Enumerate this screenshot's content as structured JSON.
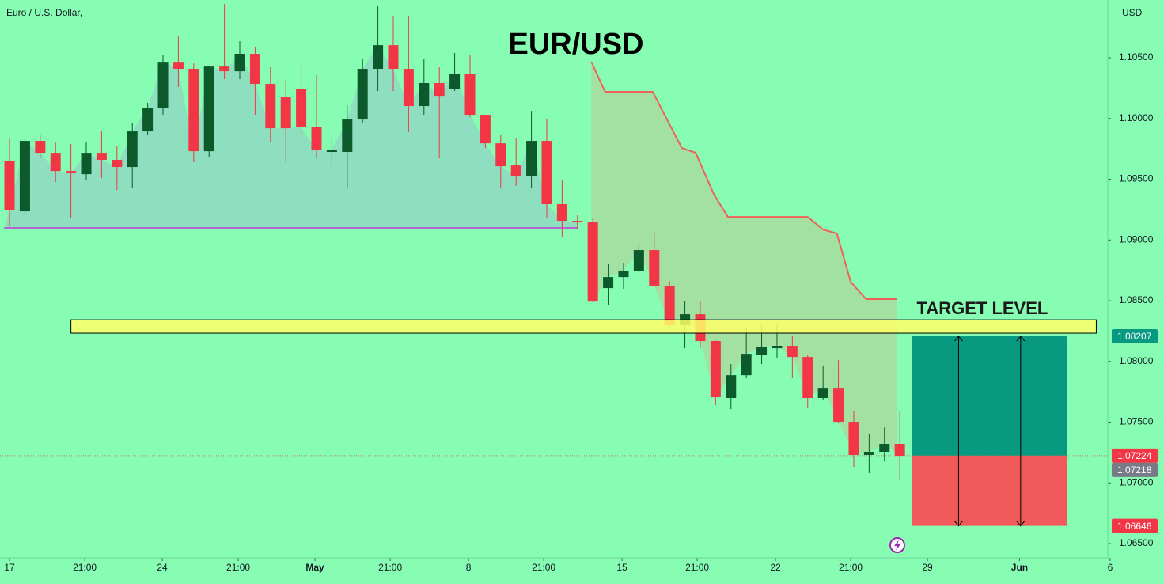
{
  "chart_data": {
    "type": "candlestick",
    "instrument": "Euro / U.S. Dollar,",
    "currency": "USD",
    "title": "EUR/USD",
    "xlim": [
      -0.62,
      71.55
    ],
    "ylim": [
      1.06383,
      1.10976
    ],
    "xticks": [
      {
        "value": 0,
        "label": "17"
      },
      {
        "value": 4.9,
        "label": "21:00"
      },
      {
        "value": 9.95,
        "label": "24"
      },
      {
        "value": 14.9,
        "label": "21:00"
      },
      {
        "value": 19.9,
        "label": "May"
      },
      {
        "value": 24.8,
        "label": "21:00"
      },
      {
        "value": 29.9,
        "label": "8"
      },
      {
        "value": 34.8,
        "label": "21:00"
      },
      {
        "value": 39.9,
        "label": "15"
      },
      {
        "value": 44.8,
        "label": "21:00"
      },
      {
        "value": 49.9,
        "label": "22"
      },
      {
        "value": 54.8,
        "label": "21:00"
      },
      {
        "value": 59.8,
        "label": "29"
      },
      {
        "value": 65.8,
        "label": "Jun"
      },
      {
        "value": 71.7,
        "label": "6"
      }
    ],
    "yticks": [
      {
        "value": 1.105,
        "label": "1.10500"
      },
      {
        "value": 1.1,
        "label": "1.10000"
      },
      {
        "value": 1.095,
        "label": "1.09500"
      },
      {
        "value": 1.09,
        "label": "1.09000"
      },
      {
        "value": 1.085,
        "label": "1.08500"
      },
      {
        "value": 1.08,
        "label": "1.08000"
      },
      {
        "value": 1.075,
        "label": "1.07500"
      },
      {
        "value": 1.07,
        "label": "1.07000"
      },
      {
        "value": 1.065,
        "label": "1.06500"
      }
    ],
    "up_color": "#0c5a2c",
    "down_color": "#f23645",
    "x": [
      0,
      1,
      2,
      3,
      4,
      5,
      6,
      7,
      8,
      9,
      10,
      11,
      12,
      13,
      14,
      15,
      16,
      17,
      18,
      19,
      20,
      21,
      22,
      23,
      24,
      25,
      26,
      27,
      28,
      29,
      30,
      31,
      32,
      33,
      34,
      35,
      36,
      37,
      38,
      39,
      40,
      41,
      42,
      43,
      44,
      45,
      46,
      47,
      48,
      49,
      50,
      51,
      52,
      53,
      54,
      55,
      56,
      57,
      58
    ],
    "open": [
      1.09653,
      1.09236,
      1.09816,
      1.09718,
      1.09568,
      1.09542,
      1.09718,
      1.0966,
      1.09601,
      1.09894,
      1.1009,
      1.10467,
      1.10409,
      1.09731,
      1.10428,
      1.10389,
      1.10533,
      1.10285,
      1.10181,
      1.10246,
      1.09933,
      1.09725,
      1.09725,
      1.09992,
      1.10409,
      1.10604,
      1.10409,
      1.10103,
      1.10292,
      1.10246,
      1.1037,
      1.10031,
      1.09796,
      1.09614,
      1.09523,
      1.09816,
      1.09295,
      1.09158,
      1.09145,
      1.08604,
      1.08695,
      1.08747,
      1.08917,
      1.08624,
      1.08298,
      1.08389,
      1.08168,
      1.07699,
      1.07887,
      1.08057,
      1.08109,
      1.08129,
      1.08037,
      1.07699,
      1.07783,
      1.07503,
      1.0723,
      1.07256,
      1.07321
    ],
    "high": [
      1.09835,
      1.09835,
      1.09868,
      1.09803,
      1.0979,
      1.09803,
      1.09901,
      1.0977,
      1.09966,
      1.10129,
      1.1052,
      1.10682,
      1.10454,
      1.10435,
      1.10943,
      1.10637,
      1.10585,
      1.10422,
      1.10324,
      1.10454,
      1.10357,
      1.09835,
      1.10109,
      1.10487,
      1.10923,
      1.10845,
      1.10845,
      1.10487,
      1.10422,
      1.10539,
      1.1052,
      1.10031,
      1.09868,
      1.09835,
      1.10063,
      1.09998,
      1.0949,
      1.09204,
      1.09184,
      1.08806,
      1.08813,
      1.08969,
      1.09054,
      1.08663,
      1.085,
      1.085,
      1.08174,
      1.07979,
      1.08272,
      1.08304,
      1.08317,
      1.08207,
      1.08057,
      1.07966,
      1.08011,
      1.07588,
      1.07405,
      1.07457,
      1.07588
    ],
    "low": [
      1.09119,
      1.09217,
      1.09673,
      1.09477,
      1.09184,
      1.0949,
      1.0951,
      1.09412,
      1.09432,
      1.09868,
      1.10031,
      1.10259,
      1.0964,
      1.09679,
      1.10324,
      1.10324,
      1.10031,
      1.09803,
      1.0964,
      1.09868,
      1.09673,
      1.09607,
      1.09425,
      1.09966,
      1.10226,
      1.10226,
      1.09888,
      1.10031,
      1.09673,
      1.10226,
      1.10011,
      1.09757,
      1.09425,
      1.09445,
      1.09425,
      1.09184,
      1.09021,
      1.09086,
      1.08487,
      1.08467,
      1.08598,
      1.08728,
      1.08617,
      1.08265,
      1.08109,
      1.08109,
      1.0764,
      1.07607,
      1.07861,
      1.07979,
      1.08031,
      1.07861,
      1.0762,
      1.07679,
      1.0749,
      1.07132,
      1.0708,
      1.07177,
      1.07028
    ],
    "close": [
      1.09249,
      1.09816,
      1.09718,
      1.09568,
      1.09549,
      1.09718,
      1.0966,
      1.09601,
      1.09894,
      1.1009,
      1.10467,
      1.10409,
      1.09731,
      1.10428,
      1.10389,
      1.10533,
      1.10285,
      1.0992,
      1.0992,
      1.09927,
      1.09738,
      1.09744,
      1.09992,
      1.10409,
      1.10604,
      1.10409,
      1.10103,
      1.10292,
      1.10187,
      1.1037,
      1.10031,
      1.09796,
      1.09607,
      1.09523,
      1.09816,
      1.09295,
      1.09158,
      1.09145,
      1.08493,
      1.08695,
      1.08747,
      1.08917,
      1.08624,
      1.08298,
      1.08389,
      1.08168,
      1.07705,
      1.07887,
      1.08063,
      1.08116,
      1.08129,
      1.08037,
      1.07699,
      1.07783,
      1.07503,
      1.0723,
      1.07256,
      1.07321,
      1.07223
    ],
    "support_level": {
      "value": 1.091,
      "x_start": -0.35,
      "x_end": 37,
      "color": "#b266d0"
    },
    "red_line": {
      "color": "#f0605a",
      "x": [
        37.9,
        38.8,
        41.9,
        43.8,
        44.7,
        45.9,
        46.8,
        52.0,
        53.0,
        53.9,
        54.8,
        55.8,
        57.8
      ],
      "values": [
        1.10467,
        1.1022,
        1.1022,
        1.09757,
        1.09718,
        1.09373,
        1.0919,
        1.0919,
        1.09086,
        1.09054,
        1.08656,
        1.08513,
        1.08513
      ]
    },
    "target_zone": {
      "label": "TARGET LEVEL",
      "low": 1.08233,
      "high": 1.08343,
      "x_start": 4.0,
      "x_end": 70.8,
      "color": "#ffff66"
    },
    "position_tool": {
      "x_start": 58.8,
      "x_end": 68.9,
      "target": 1.08207,
      "entry": 1.07224,
      "stop": 1.06646
    },
    "last_price": 1.07218
  }
}
